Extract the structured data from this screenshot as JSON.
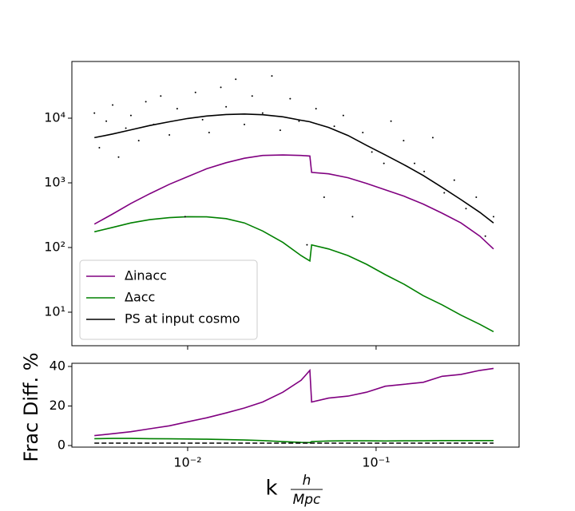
{
  "chart_data": [
    {
      "type": "line",
      "log_x": true,
      "log_y": true,
      "xlim": [
        0.00243,
        0.574
      ],
      "ylim": [
        3.03,
        75300
      ],
      "xticks": [
        0.01,
        0.1
      ],
      "yticks": [
        {
          "value": 10,
          "label": "10¹"
        },
        {
          "value": 100,
          "label": "10²"
        },
        {
          "value": 1000,
          "label": "10³"
        },
        {
          "value": 10000,
          "label": "10⁴"
        }
      ],
      "legend": "lower left",
      "x": [
        0.0032,
        0.004,
        0.005,
        0.0063,
        0.008,
        0.01,
        0.0126,
        0.016,
        0.02,
        0.025,
        0.032,
        0.04,
        0.0445,
        0.0455,
        0.056,
        0.071,
        0.089,
        0.112,
        0.141,
        0.178,
        0.224,
        0.282,
        0.355,
        0.42
      ],
      "series": [
        {
          "name": "Δinacc",
          "color": "#800080",
          "values": [
            230,
            330,
            480,
            680,
            950,
            1250,
            1650,
            2050,
            2400,
            2650,
            2700,
            2650,
            2600,
            1450,
            1380,
            1200,
            980,
            780,
            620,
            470,
            340,
            240,
            150,
            95
          ]
        },
        {
          "name": "Δacc",
          "color": "#008000",
          "values": [
            175,
            205,
            240,
            270,
            290,
            300,
            298,
            280,
            240,
            180,
            120,
            75,
            62,
            110,
            95,
            75,
            55,
            38,
            27,
            18,
            13,
            9,
            6.5,
            5
          ]
        },
        {
          "name": "PS at input cosmo",
          "color": "#000000",
          "values": [
            5000,
            5700,
            6600,
            7700,
            8800,
            9900,
            10800,
            11400,
            11600,
            11300,
            10500,
            9300,
            8800,
            8600,
            7200,
            5400,
            3800,
            2700,
            1900,
            1300,
            850,
            550,
            350,
            240
          ]
        },
        {
          "type": "scatter",
          "color": "#000000",
          "x": [
            0.0032,
            0.0034,
            0.0037,
            0.004,
            0.0043,
            0.0047,
            0.005,
            0.0055,
            0.006,
            0.0066,
            0.0072,
            0.008,
            0.0088,
            0.0097,
            0.011,
            0.012,
            0.013,
            0.015,
            0.016,
            0.018,
            0.02,
            0.022,
            0.025,
            0.028,
            0.031,
            0.035,
            0.039,
            0.043,
            0.048,
            0.053,
            0.06,
            0.067,
            0.075,
            0.085,
            0.095,
            0.11,
            0.12,
            0.14,
            0.16,
            0.18,
            0.2,
            0.23,
            0.26,
            0.3,
            0.34,
            0.38,
            0.42
          ],
          "values": [
            12000,
            3500,
            9000,
            16000,
            2500,
            7000,
            11000,
            4500,
            18000,
            8000,
            22000,
            5500,
            14000,
            300,
            25000,
            9500,
            6000,
            30000,
            15000,
            40000,
            8000,
            22000,
            12000,
            45000,
            6500,
            20000,
            9000,
            110,
            14000,
            600,
            7500,
            11000,
            300,
            6000,
            3000,
            2000,
            9000,
            4500,
            2000,
            1500,
            5000,
            700,
            1100,
            400,
            600,
            150,
            300
          ]
        }
      ]
    },
    {
      "type": "line",
      "log_x": true,
      "log_y": false,
      "xlim": [
        0.00243,
        0.574
      ],
      "ylim": [
        -0.8,
        41.6
      ],
      "xticks": [
        {
          "value": 0.01,
          "label": "10⁻²"
        },
        {
          "value": 0.1,
          "label": "10⁻¹"
        }
      ],
      "yticks": [
        0,
        20,
        40
      ],
      "ylabel": "Frac Diff. %",
      "xlabel": [
        "k",
        "h",
        "Mpc"
      ],
      "x": [
        0.0032,
        0.004,
        0.005,
        0.0063,
        0.008,
        0.01,
        0.0126,
        0.016,
        0.02,
        0.025,
        0.032,
        0.04,
        0.0445,
        0.0455,
        0.056,
        0.071,
        0.089,
        0.112,
        0.141,
        0.178,
        0.224,
        0.282,
        0.355,
        0.42
      ],
      "series": [
        {
          "color": "#800080",
          "values": [
            5,
            6,
            7,
            8.5,
            10,
            12,
            14,
            16.5,
            19,
            22,
            27,
            33,
            38,
            22,
            24,
            25,
            27,
            30,
            31,
            32,
            35,
            36,
            38,
            39
          ]
        },
        {
          "color": "#008000",
          "values": [
            3.5,
            3.6,
            3.6,
            3.5,
            3.4,
            3.3,
            3.2,
            3.0,
            2.8,
            2.5,
            2.0,
            1.6,
            1.5,
            2.0,
            2.3,
            2.4,
            2.4,
            2.3,
            2.4,
            2.4,
            2.5,
            2.5,
            2.5,
            2.5
          ]
        },
        {
          "color": "#000000",
          "dash": true,
          "values": [
            1.2,
            1.2,
            1.2,
            1.2,
            1.2,
            1.2,
            1.2,
            1.2,
            1.2,
            1.2,
            1.2,
            1.2,
            1.2,
            1.2,
            1.2,
            1.2,
            1.2,
            1.2,
            1.2,
            1.2,
            1.2,
            1.2,
            1.2,
            1.2
          ]
        }
      ]
    }
  ]
}
